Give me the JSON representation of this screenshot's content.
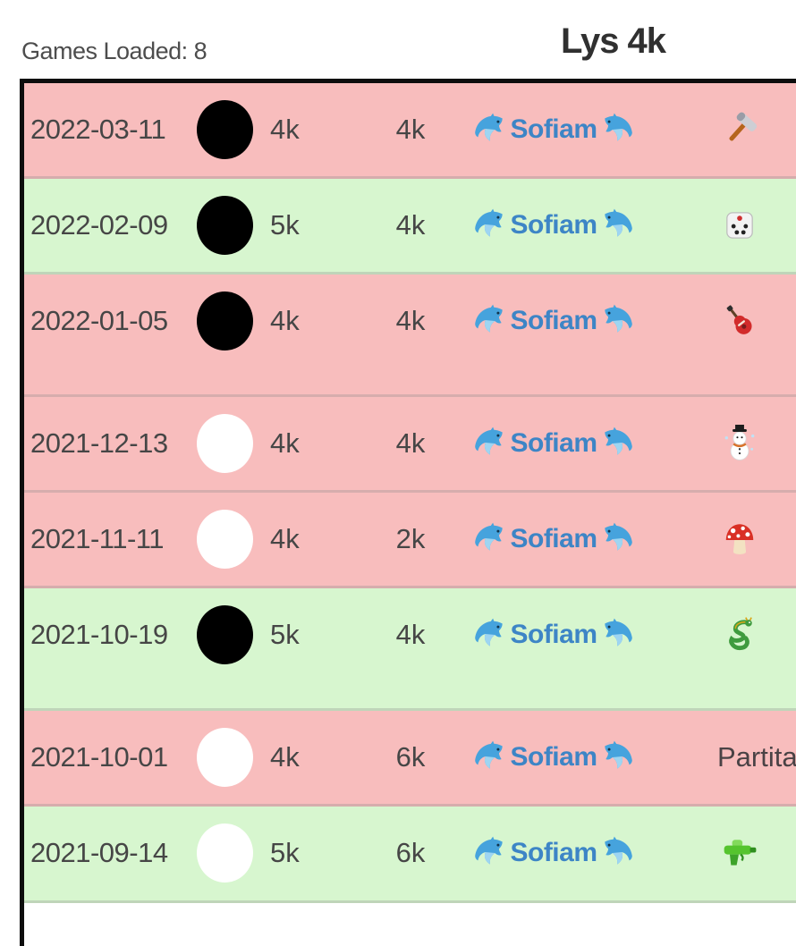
{
  "header": {
    "games_loaded_label": "Games Loaded: 8",
    "title": "Lys 4k"
  },
  "colors": {
    "row_loss_background": "#f8bdbd",
    "row_win_background": "#d7f6cf",
    "opponent_name_blue": "#3d85c6",
    "border_black": "#0d0d0d",
    "text_gray": "#464646"
  },
  "rows": [
    {
      "date": "2022-03-11",
      "stone": "black",
      "rank_left": "4k",
      "rank_right": "4k",
      "opponent": "Sofiam",
      "result": "loss",
      "icon": "hammer-icon",
      "tall": false
    },
    {
      "date": "2022-02-09",
      "stone": "black",
      "rank_left": "5k",
      "rank_right": "4k",
      "opponent": "Sofiam",
      "result": "win",
      "icon": "die-icon",
      "tall": false
    },
    {
      "date": "2022-01-05",
      "stone": "black",
      "rank_left": "4k",
      "rank_right": "4k",
      "opponent": "Sofiam",
      "result": "loss",
      "icon": "guitar-icon",
      "tall": true
    },
    {
      "date": "2021-12-13",
      "stone": "white",
      "rank_left": "4k",
      "rank_right": "4k",
      "opponent": "Sofiam",
      "result": "loss",
      "icon": "snowman-icon",
      "tall": false
    },
    {
      "date": "2021-11-11",
      "stone": "white",
      "rank_left": "4k",
      "rank_right": "2k",
      "opponent": "Sofiam",
      "result": "loss",
      "icon": "mushroom-icon",
      "tall": false
    },
    {
      "date": "2021-10-19",
      "stone": "black",
      "rank_left": "5k",
      "rank_right": "4k",
      "opponent": "Sofiam",
      "result": "win",
      "icon": "dragon-icon",
      "tall": true
    },
    {
      "date": "2021-10-01",
      "stone": "white",
      "rank_left": "4k",
      "rank_right": "6k",
      "opponent": "Sofiam",
      "result": "loss",
      "game_name": "Partita",
      "tall": false
    },
    {
      "date": "2021-09-14",
      "stone": "white",
      "rank_left": "5k",
      "rank_right": "6k",
      "opponent": "Sofiam",
      "result": "win",
      "icon": "watergun-icon",
      "tall": false
    }
  ]
}
